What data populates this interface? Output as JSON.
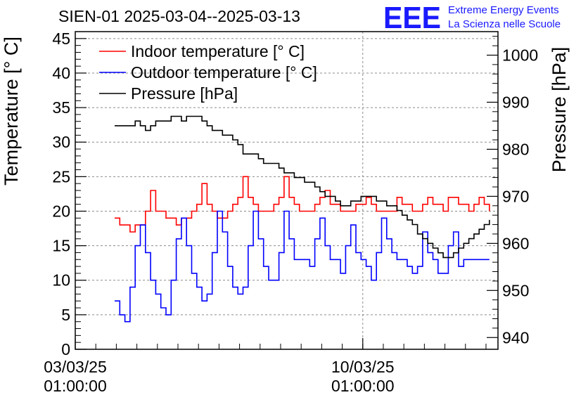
{
  "title": "SIEN-01 2025-03-04--2025-03-13",
  "logo": {
    "letters": "EEE",
    "line1": "Extreme Energy Events",
    "line2": "La Scienza nelle Scuole",
    "color": "#1a1aff"
  },
  "chart_data": {
    "type": "line",
    "title": "SIEN-01 2025-03-04--2025-03-13",
    "ylabel": "Temperature [° C]",
    "y2label": "Pressure [hPa]",
    "xlabel": "",
    "ylim": [
      0,
      46
    ],
    "y2lim": [
      937.5,
      1005
    ],
    "xlim": [
      "2025-03-03 01:00",
      "2025-03-13 08:00"
    ],
    "yticks": [
      0,
      5,
      10,
      15,
      20,
      25,
      30,
      35,
      40,
      45
    ],
    "y2ticks": [
      940,
      950,
      960,
      970,
      980,
      990,
      1000
    ],
    "xticks": [
      {
        "x": "2025-03-03 01:00",
        "label_date": "03/03/25",
        "label_time": "01:00:00"
      },
      {
        "x": "2025-03-10 01:00",
        "label_date": "10/03/25",
        "label_time": "01:00:00"
      }
    ],
    "grid": true,
    "legend_position": "top-left",
    "series": [
      {
        "name": "Indoor temperature [° C]",
        "color": "#ff0000",
        "axis": "left",
        "x": [
          "2025-03-04 00:00",
          "2025-03-04 03:00",
          "2025-03-04 06:00",
          "2025-03-04 09:00",
          "2025-03-04 12:00",
          "2025-03-04 15:00",
          "2025-03-04 18:00",
          "2025-03-04 21:00",
          "2025-03-05 00:00",
          "2025-03-05 03:00",
          "2025-03-05 06:00",
          "2025-03-05 09:00",
          "2025-03-05 12:00",
          "2025-03-05 15:00",
          "2025-03-05 18:00",
          "2025-03-05 21:00",
          "2025-03-06 00:00",
          "2025-03-06 03:00",
          "2025-03-06 06:00",
          "2025-03-06 09:00",
          "2025-03-06 12:00",
          "2025-03-06 15:00",
          "2025-03-06 18:00",
          "2025-03-06 21:00",
          "2025-03-07 00:00",
          "2025-03-07 03:00",
          "2025-03-07 06:00",
          "2025-03-07 09:00",
          "2025-03-07 12:00",
          "2025-03-07 15:00",
          "2025-03-07 18:00",
          "2025-03-07 21:00",
          "2025-03-08 00:00",
          "2025-03-08 03:00",
          "2025-03-08 06:00",
          "2025-03-08 09:00",
          "2025-03-08 12:00",
          "2025-03-08 15:00",
          "2025-03-08 18:00",
          "2025-03-08 21:00",
          "2025-03-09 00:00",
          "2025-03-09 03:00",
          "2025-03-09 06:00",
          "2025-03-09 09:00",
          "2025-03-09 12:00",
          "2025-03-09 15:00",
          "2025-03-09 18:00",
          "2025-03-09 21:00",
          "2025-03-10 00:00",
          "2025-03-10 03:00",
          "2025-03-10 06:00",
          "2025-03-10 09:00",
          "2025-03-10 12:00",
          "2025-03-10 15:00",
          "2025-03-10 18:00",
          "2025-03-10 21:00",
          "2025-03-11 00:00",
          "2025-03-11 03:00",
          "2025-03-11 06:00",
          "2025-03-11 09:00",
          "2025-03-11 12:00",
          "2025-03-11 15:00",
          "2025-03-11 18:00",
          "2025-03-11 21:00",
          "2025-03-12 00:00",
          "2025-03-12 03:00",
          "2025-03-12 06:00",
          "2025-03-12 09:00",
          "2025-03-12 12:00",
          "2025-03-12 15:00",
          "2025-03-12 18:00",
          "2025-03-12 21:00",
          "2025-03-13 00:00",
          "2025-03-13 03:00"
        ],
        "values": [
          19,
          18,
          18,
          17,
          18,
          18,
          20,
          23,
          20,
          20,
          19,
          19,
          18,
          19,
          19,
          20,
          21,
          24,
          21,
          20,
          19,
          19,
          20,
          21,
          22,
          25,
          22,
          21,
          20,
          20,
          20,
          21,
          22,
          25,
          22,
          21,
          20,
          20,
          20,
          21,
          22,
          23,
          21,
          21,
          20,
          20,
          20,
          21,
          21,
          22,
          21,
          20,
          20,
          20,
          20,
          22,
          21,
          21,
          20,
          20,
          21,
          22,
          21,
          21,
          20,
          22,
          22,
          21,
          21,
          20,
          21,
          22,
          21,
          20
        ]
      },
      {
        "name": "Outdoor temperature [° C]",
        "color": "#0000ff",
        "axis": "left",
        "x": [
          "2025-03-04 00:00",
          "2025-03-04 03:00",
          "2025-03-04 06:00",
          "2025-03-04 09:00",
          "2025-03-04 12:00",
          "2025-03-04 15:00",
          "2025-03-04 18:00",
          "2025-03-04 21:00",
          "2025-03-05 00:00",
          "2025-03-05 03:00",
          "2025-03-05 06:00",
          "2025-03-05 09:00",
          "2025-03-05 12:00",
          "2025-03-05 15:00",
          "2025-03-05 18:00",
          "2025-03-05 21:00",
          "2025-03-06 00:00",
          "2025-03-06 03:00",
          "2025-03-06 06:00",
          "2025-03-06 09:00",
          "2025-03-06 12:00",
          "2025-03-06 15:00",
          "2025-03-06 18:00",
          "2025-03-06 21:00",
          "2025-03-07 00:00",
          "2025-03-07 03:00",
          "2025-03-07 06:00",
          "2025-03-07 09:00",
          "2025-03-07 12:00",
          "2025-03-07 15:00",
          "2025-03-07 18:00",
          "2025-03-07 21:00",
          "2025-03-08 00:00",
          "2025-03-08 03:00",
          "2025-03-08 06:00",
          "2025-03-08 09:00",
          "2025-03-08 12:00",
          "2025-03-08 15:00",
          "2025-03-08 18:00",
          "2025-03-08 21:00",
          "2025-03-09 00:00",
          "2025-03-09 03:00",
          "2025-03-09 06:00",
          "2025-03-09 09:00",
          "2025-03-09 12:00",
          "2025-03-09 15:00",
          "2025-03-09 18:00",
          "2025-03-09 21:00",
          "2025-03-10 00:00",
          "2025-03-10 03:00",
          "2025-03-10 06:00",
          "2025-03-10 09:00",
          "2025-03-10 12:00",
          "2025-03-10 15:00",
          "2025-03-10 18:00",
          "2025-03-10 21:00",
          "2025-03-11 00:00",
          "2025-03-11 03:00",
          "2025-03-11 06:00",
          "2025-03-11 09:00",
          "2025-03-11 12:00",
          "2025-03-11 15:00",
          "2025-03-11 18:00",
          "2025-03-11 21:00",
          "2025-03-12 00:00",
          "2025-03-12 03:00",
          "2025-03-12 06:00",
          "2025-03-12 09:00",
          "2025-03-12 12:00",
          "2025-03-12 15:00",
          "2025-03-12 18:00",
          "2025-03-12 21:00",
          "2025-03-13 00:00",
          "2025-03-13 03:00"
        ],
        "values": [
          7,
          5,
          4,
          9,
          15,
          18,
          14,
          10,
          8,
          6,
          5,
          10,
          16,
          19,
          15,
          11,
          9,
          7,
          8,
          14,
          20,
          17,
          12,
          9,
          8,
          9,
          15,
          20,
          16,
          12,
          10,
          10,
          14,
          20,
          16,
          13,
          13,
          13,
          12,
          16,
          19,
          15,
          13,
          13,
          11,
          15,
          18,
          14,
          13,
          12,
          10,
          14,
          19,
          16,
          14,
          13,
          13,
          12,
          11,
          12,
          17,
          14,
          13,
          11,
          11,
          15,
          17,
          12,
          13,
          13,
          13,
          13,
          13,
          13
        ]
      },
      {
        "name": "Pressure [hPa]",
        "color": "#000000",
        "axis": "right",
        "x": [
          "2025-03-04 00:00",
          "2025-03-04 03:00",
          "2025-03-04 06:00",
          "2025-03-04 09:00",
          "2025-03-04 12:00",
          "2025-03-04 15:00",
          "2025-03-04 18:00",
          "2025-03-04 21:00",
          "2025-03-05 00:00",
          "2025-03-05 03:00",
          "2025-03-05 06:00",
          "2025-03-05 09:00",
          "2025-03-05 12:00",
          "2025-03-05 15:00",
          "2025-03-05 18:00",
          "2025-03-05 21:00",
          "2025-03-06 00:00",
          "2025-03-06 03:00",
          "2025-03-06 06:00",
          "2025-03-06 09:00",
          "2025-03-06 12:00",
          "2025-03-06 15:00",
          "2025-03-06 18:00",
          "2025-03-06 21:00",
          "2025-03-07 00:00",
          "2025-03-07 03:00",
          "2025-03-07 06:00",
          "2025-03-07 09:00",
          "2025-03-07 12:00",
          "2025-03-07 15:00",
          "2025-03-07 18:00",
          "2025-03-07 21:00",
          "2025-03-08 00:00",
          "2025-03-08 03:00",
          "2025-03-08 06:00",
          "2025-03-08 09:00",
          "2025-03-08 12:00",
          "2025-03-08 15:00",
          "2025-03-08 18:00",
          "2025-03-08 21:00",
          "2025-03-09 00:00",
          "2025-03-09 03:00",
          "2025-03-09 06:00",
          "2025-03-09 09:00",
          "2025-03-09 12:00",
          "2025-03-09 15:00",
          "2025-03-09 18:00",
          "2025-03-09 21:00",
          "2025-03-10 00:00",
          "2025-03-10 03:00",
          "2025-03-10 06:00",
          "2025-03-10 09:00",
          "2025-03-10 12:00",
          "2025-03-10 15:00",
          "2025-03-10 18:00",
          "2025-03-10 21:00",
          "2025-03-11 00:00",
          "2025-03-11 03:00",
          "2025-03-11 06:00",
          "2025-03-11 09:00",
          "2025-03-11 12:00",
          "2025-03-11 15:00",
          "2025-03-11 18:00",
          "2025-03-11 21:00",
          "2025-03-12 00:00",
          "2025-03-12 03:00",
          "2025-03-12 06:00",
          "2025-03-12 09:00",
          "2025-03-12 12:00",
          "2025-03-12 15:00",
          "2025-03-12 18:00",
          "2025-03-12 21:00",
          "2025-03-13 00:00",
          "2025-03-13 03:00"
        ],
        "values": [
          985,
          985,
          985,
          985,
          986,
          985,
          984,
          985,
          986,
          986,
          986,
          987,
          987,
          986,
          987,
          987,
          987,
          986,
          985,
          984,
          984,
          983,
          983,
          982,
          981,
          979,
          979,
          979,
          978,
          977,
          977,
          977,
          976,
          975,
          975,
          974,
          974,
          973,
          973,
          972,
          971,
          970,
          970,
          969,
          968,
          968,
          969,
          969,
          970,
          970,
          970,
          969,
          969,
          968,
          968,
          967,
          966,
          965,
          964,
          962,
          961,
          960,
          959,
          958,
          957,
          957,
          958,
          959,
          960,
          961,
          962,
          963,
          964,
          965
        ]
      }
    ]
  }
}
